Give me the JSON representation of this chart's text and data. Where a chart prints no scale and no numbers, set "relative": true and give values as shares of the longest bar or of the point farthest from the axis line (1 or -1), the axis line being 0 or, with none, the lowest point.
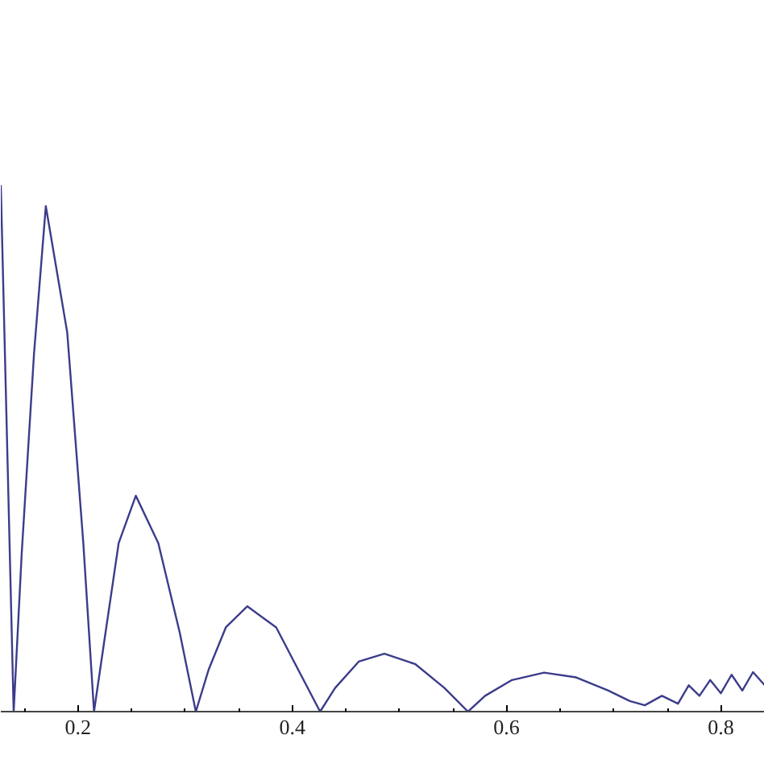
{
  "chart_data": {
    "type": "line",
    "relative": true,
    "color": "#3c3c8c",
    "x": [
      0.128,
      0.14,
      0.1475,
      0.159,
      0.17,
      0.19,
      0.205,
      0.215,
      0.225,
      0.238,
      0.254,
      0.275,
      0.295,
      0.31,
      0.322,
      0.338,
      0.358,
      0.385,
      0.408,
      0.426,
      0.44,
      0.462,
      0.486,
      0.515,
      0.542,
      0.564,
      0.58,
      0.605,
      0.635,
      0.665,
      0.695,
      0.715,
      0.729,
      0.745,
      0.76,
      0.77,
      0.78,
      0.79,
      0.8,
      0.81,
      0.82,
      0.83,
      0.841
    ],
    "values": [
      1.0,
      0.0,
      0.3,
      0.68,
      0.96,
      0.72,
      0.32,
      0.0,
      0.14,
      0.32,
      0.41,
      0.32,
      0.15,
      0.0,
      0.08,
      0.16,
      0.2,
      0.16,
      0.07,
      0.0,
      0.045,
      0.095,
      0.11,
      0.09,
      0.045,
      0.0,
      0.03,
      0.06,
      0.074,
      0.065,
      0.04,
      0.02,
      0.012,
      0.03,
      0.015,
      0.05,
      0.03,
      0.06,
      0.035,
      0.07,
      0.04,
      0.075,
      0.05
    ],
    "xlim": [
      0.128,
      0.841
    ],
    "xticks": [
      0.2,
      0.4,
      0.6,
      0.8
    ],
    "grid": false
  }
}
